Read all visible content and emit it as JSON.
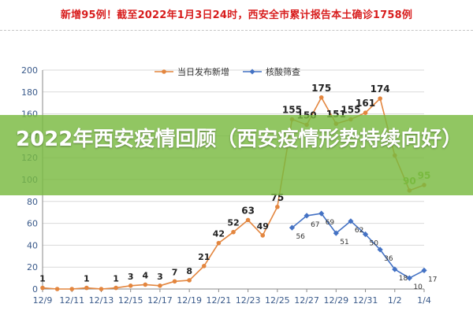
{
  "headline": "新增95例！截至2022年1月3日24时，西安全市累计报告本土确诊1758例",
  "overlay": {
    "title": "2022年西安疫情回顾（西安疫情形势持续向好）"
  },
  "colors": {
    "headline": "#d81e1e",
    "series_daily": "#e3863f",
    "series_screening": "#4472c4",
    "overlay_band": "#79ba40",
    "axis_text": "#3a5a8a"
  },
  "chart_data": {
    "type": "line",
    "xlim_date": [
      "2021-12-09",
      "2022-01-04"
    ],
    "ylim": [
      0,
      200
    ],
    "y_ticks": [
      0,
      20,
      40,
      60,
      80,
      100,
      120,
      140,
      160,
      180,
      200
    ],
    "x_ticks": [
      {
        "date": "2021-12-09",
        "label": "12/9"
      },
      {
        "date": "2021-12-11",
        "label": "12/11"
      },
      {
        "date": "2021-12-13",
        "label": "12/13"
      },
      {
        "date": "2021-12-15",
        "label": "12/15"
      },
      {
        "date": "2021-12-17",
        "label": "12/17"
      },
      {
        "date": "2021-12-19",
        "label": "12/19"
      },
      {
        "date": "2021-12-21",
        "label": "12/21"
      },
      {
        "date": "2021-12-23",
        "label": "12/23"
      },
      {
        "date": "2021-12-25",
        "label": "12/25"
      },
      {
        "date": "2021-12-27",
        "label": "12/27"
      },
      {
        "date": "2021-12-29",
        "label": "12/29"
      },
      {
        "date": "2021-12-31",
        "label": "12/31"
      },
      {
        "date": "2022-01-02",
        "label": "1/2"
      },
      {
        "date": "2022-01-04",
        "label": "1/4"
      }
    ],
    "grid": "horizontal",
    "legend_position": "top",
    "series": [
      {
        "name": "当日发布新增",
        "color": "#e3863f",
        "marker": "circle",
        "label_style": "bold-above",
        "points": [
          {
            "date": "2021-12-09",
            "value": 1,
            "label": "1"
          },
          {
            "date": "2021-12-10",
            "value": 0,
            "label": ""
          },
          {
            "date": "2021-12-11",
            "value": 0,
            "label": ""
          },
          {
            "date": "2021-12-12",
            "value": 1,
            "label": "1"
          },
          {
            "date": "2021-12-13",
            "value": 0,
            "label": ""
          },
          {
            "date": "2021-12-14",
            "value": 1,
            "label": "1"
          },
          {
            "date": "2021-12-15",
            "value": 3,
            "label": "3"
          },
          {
            "date": "2021-12-16",
            "value": 4,
            "label": "4"
          },
          {
            "date": "2021-12-17",
            "value": 3,
            "label": "3"
          },
          {
            "date": "2021-12-18",
            "value": 7,
            "label": "7"
          },
          {
            "date": "2021-12-19",
            "value": 8,
            "label": "8"
          },
          {
            "date": "2021-12-20",
            "value": 21,
            "label": "21"
          },
          {
            "date": "2021-12-21",
            "value": 42,
            "label": "42"
          },
          {
            "date": "2021-12-22",
            "value": 52,
            "label": "52"
          },
          {
            "date": "2021-12-23",
            "value": 63,
            "label": "63"
          },
          {
            "date": "2021-12-24",
            "value": 49,
            "label": "49"
          },
          {
            "date": "2021-12-25",
            "value": 75,
            "label": "75"
          },
          {
            "date": "2021-12-26",
            "value": 155,
            "label": "155"
          },
          {
            "date": "2021-12-27",
            "value": 150,
            "label": "150"
          },
          {
            "date": "2021-12-28",
            "value": 175,
            "label": "175"
          },
          {
            "date": "2021-12-29",
            "value": 151,
            "label": "151"
          },
          {
            "date": "2021-12-30",
            "value": 155,
            "label": "155"
          },
          {
            "date": "2021-12-31",
            "value": 161,
            "label": "161"
          },
          {
            "date": "2022-01-01",
            "value": 174,
            "label": "174"
          },
          {
            "date": "2022-01-02",
            "value": 122,
            "label": ""
          },
          {
            "date": "2022-01-03",
            "value": 90,
            "label": "90"
          },
          {
            "date": "2022-01-04",
            "value": 95,
            "label": "95"
          }
        ]
      },
      {
        "name": "核酸筛查",
        "color": "#4472c4",
        "marker": "diamond",
        "label_style": "small-below",
        "points": [
          {
            "date": "2021-12-26",
            "value": 56,
            "label": "56"
          },
          {
            "date": "2021-12-27",
            "value": 67,
            "label": "67"
          },
          {
            "date": "2021-12-28",
            "value": 69,
            "label": "69"
          },
          {
            "date": "2021-12-29",
            "value": 51,
            "label": "51"
          },
          {
            "date": "2021-12-30",
            "value": 62,
            "label": "62"
          },
          {
            "date": "2021-12-31",
            "value": 50,
            "label": "50"
          },
          {
            "date": "2022-01-01",
            "value": 36,
            "label": "36"
          },
          {
            "date": "2022-01-02",
            "value": 18,
            "label": "18"
          },
          {
            "date": "2022-01-03",
            "value": 10,
            "label": "10"
          },
          {
            "date": "2022-01-04",
            "value": 17,
            "label": "17"
          }
        ]
      }
    ]
  }
}
